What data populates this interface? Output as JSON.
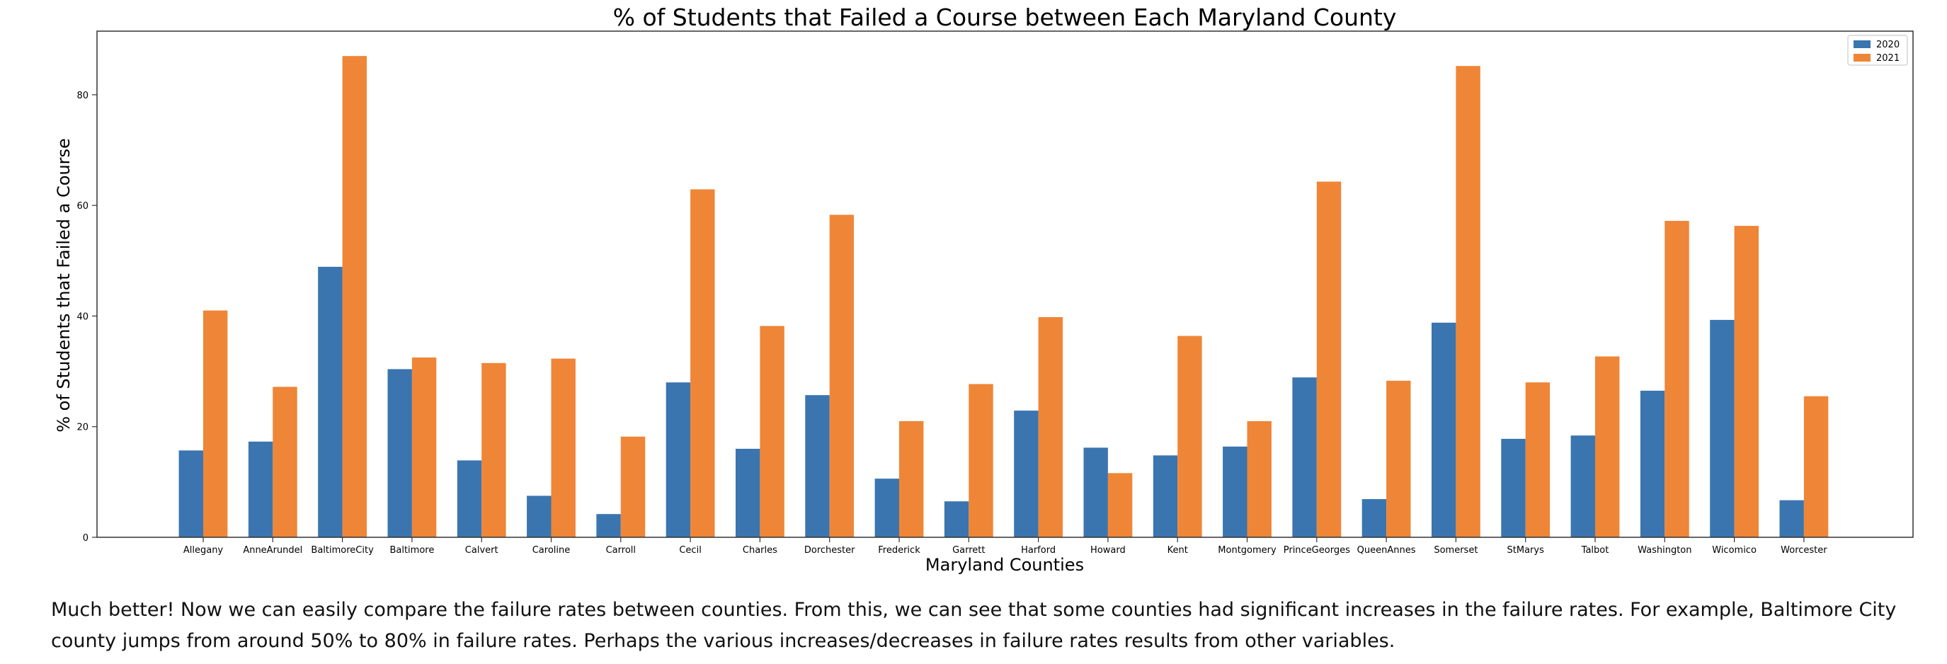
{
  "chart_data": {
    "type": "bar",
    "title": "% of Students that Failed a Course between Each Maryland County",
    "xlabel": "Maryland Counties",
    "ylabel": "% of Students that Failed a Course",
    "ylim": [
      0,
      91.5
    ],
    "yticks": [
      0,
      20,
      40,
      60,
      80
    ],
    "grid": false,
    "legend": "top-right",
    "categories": [
      "Allegany",
      "AnneArundel",
      "BaltimoreCity",
      "Baltimore",
      "Calvert",
      "Caroline",
      "Carroll",
      "Cecil",
      "Charles",
      "Dorchester",
      "Frederick",
      "Garrett",
      "Harford",
      "Howard",
      "Kent",
      "Montgomery",
      "PrinceGeorges",
      "QueenAnnes",
      "Somerset",
      "StMarys",
      "Talbot",
      "Washington",
      "Wicomico",
      "Worcester"
    ],
    "series": [
      {
        "name": "2020",
        "color": "#3a75af",
        "values": [
          15.7,
          17.3,
          48.9,
          30.4,
          13.9,
          7.5,
          4.2,
          28.0,
          16.0,
          25.7,
          10.6,
          6.5,
          22.9,
          16.2,
          14.8,
          16.4,
          28.9,
          6.9,
          38.8,
          17.8,
          18.4,
          26.5,
          39.3,
          6.7
        ]
      },
      {
        "name": "2021",
        "color": "#ef8536",
        "values": [
          41.0,
          27.2,
          87.0,
          32.5,
          31.5,
          32.3,
          18.2,
          62.9,
          38.2,
          58.3,
          21.0,
          27.7,
          39.8,
          11.6,
          36.4,
          21.0,
          64.3,
          28.3,
          85.2,
          28.0,
          32.7,
          57.2,
          56.3,
          25.5
        ]
      }
    ]
  },
  "notebook": {
    "paragraph": "Much better! Now we can easily compare the failure rates between counties. From this, we can see that some counties had significant increases in the failure rates. For example, Baltimore City county jumps from around 50% to 80% in failure rates. Perhaps the various increases/decreases in failure rates results from other variables."
  }
}
